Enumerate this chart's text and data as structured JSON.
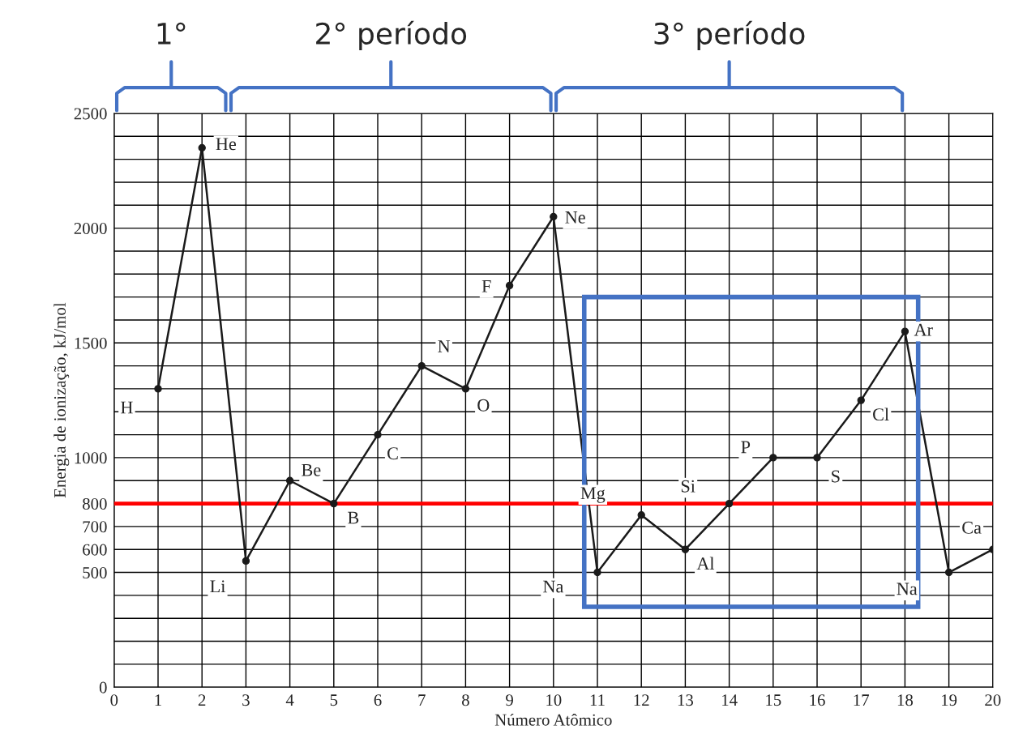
{
  "chart_data": {
    "type": "line",
    "xlabel": "Número Atômico",
    "ylabel": "Energia de ionização, kJ/mol",
    "x": [
      1,
      2,
      3,
      4,
      5,
      6,
      7,
      8,
      9,
      10,
      11,
      12,
      13,
      14,
      15,
      16,
      17,
      18,
      19,
      20
    ],
    "series": [
      {
        "color": "#1a1a1a",
        "values": [
          1300,
          2350,
          550,
          900,
          800,
          1100,
          1400,
          1300,
          1750,
          2050,
          500,
          750,
          600,
          800,
          1000,
          1000,
          1250,
          1550,
          500,
          600
        ]
      }
    ],
    "marker": "circle",
    "line_style": "solid",
    "xlim": [
      0,
      20
    ],
    "xticks": [
      0,
      1,
      2,
      3,
      4,
      5,
      6,
      7,
      8,
      9,
      10,
      11,
      12,
      13,
      14,
      15,
      16,
      17,
      18,
      19,
      20
    ],
    "ylim": [
      0,
      2500
    ],
    "yticks": [
      0,
      {
        "value": 100,
        "label": null
      },
      {
        "value": 200,
        "label": null
      },
      {
        "value": 300,
        "label": null
      },
      {
        "value": 400,
        "label": null
      },
      500,
      600,
      700,
      800,
      {
        "value": 900,
        "label": null
      },
      1000,
      {
        "value": 1100,
        "label": null
      },
      {
        "value": 1200,
        "label": null
      },
      {
        "value": 1300,
        "label": null
      },
      {
        "value": 1400,
        "label": null
      },
      1500,
      {
        "value": 1600,
        "label": null
      },
      {
        "value": 1700,
        "label": null
      },
      {
        "value": 1800,
        "label": null
      },
      {
        "value": 1900,
        "label": null
      },
      2000,
      {
        "value": 2100,
        "label": null
      },
      {
        "value": 2200,
        "label": null
      },
      {
        "value": 2300,
        "label": null
      },
      {
        "value": 2400,
        "label": null
      },
      2500
    ],
    "grid": true,
    "ref_lines": [
      {
        "axis": "y",
        "value": 800,
        "color": "#ff0000",
        "line_style": "solid"
      }
    ],
    "annotations": [
      "1°",
      "2° período",
      "3° período",
      {
        "text": "H",
        "x": 1,
        "y": 1300
      },
      {
        "text": "He",
        "x": 2,
        "y": 2350
      },
      {
        "text": "Li",
        "x": 3,
        "y": 550
      },
      {
        "text": "Be",
        "x": 4,
        "y": 900
      },
      {
        "text": "B",
        "x": 5,
        "y": 800
      },
      {
        "text": "C",
        "x": 6,
        "y": 1100
      },
      {
        "text": "N",
        "x": 7,
        "y": 1400
      },
      {
        "text": "O",
        "x": 8,
        "y": 1300
      },
      {
        "text": "F",
        "x": 9,
        "y": 1750
      },
      {
        "text": "Ne",
        "x": 10,
        "y": 2050
      },
      {
        "text": "Na",
        "x": 11,
        "y": 500
      },
      {
        "text": "Mg",
        "x": 12,
        "y": 750
      },
      {
        "text": "Al",
        "x": 13,
        "y": 600
      },
      {
        "text": "Si",
        "x": 14,
        "y": 800
      },
      {
        "text": "P",
        "x": 15,
        "y": 1000
      },
      {
        "text": "S",
        "x": 16,
        "y": 1000
      },
      {
        "text": "Cl",
        "x": 17,
        "y": 1250
      },
      {
        "text": "Ar",
        "x": 18,
        "y": 1550
      },
      {
        "text": "Na",
        "x": 19,
        "y": 500
      },
      {
        "text": "Ca",
        "x": 20,
        "y": 600
      }
    ]
  }
}
